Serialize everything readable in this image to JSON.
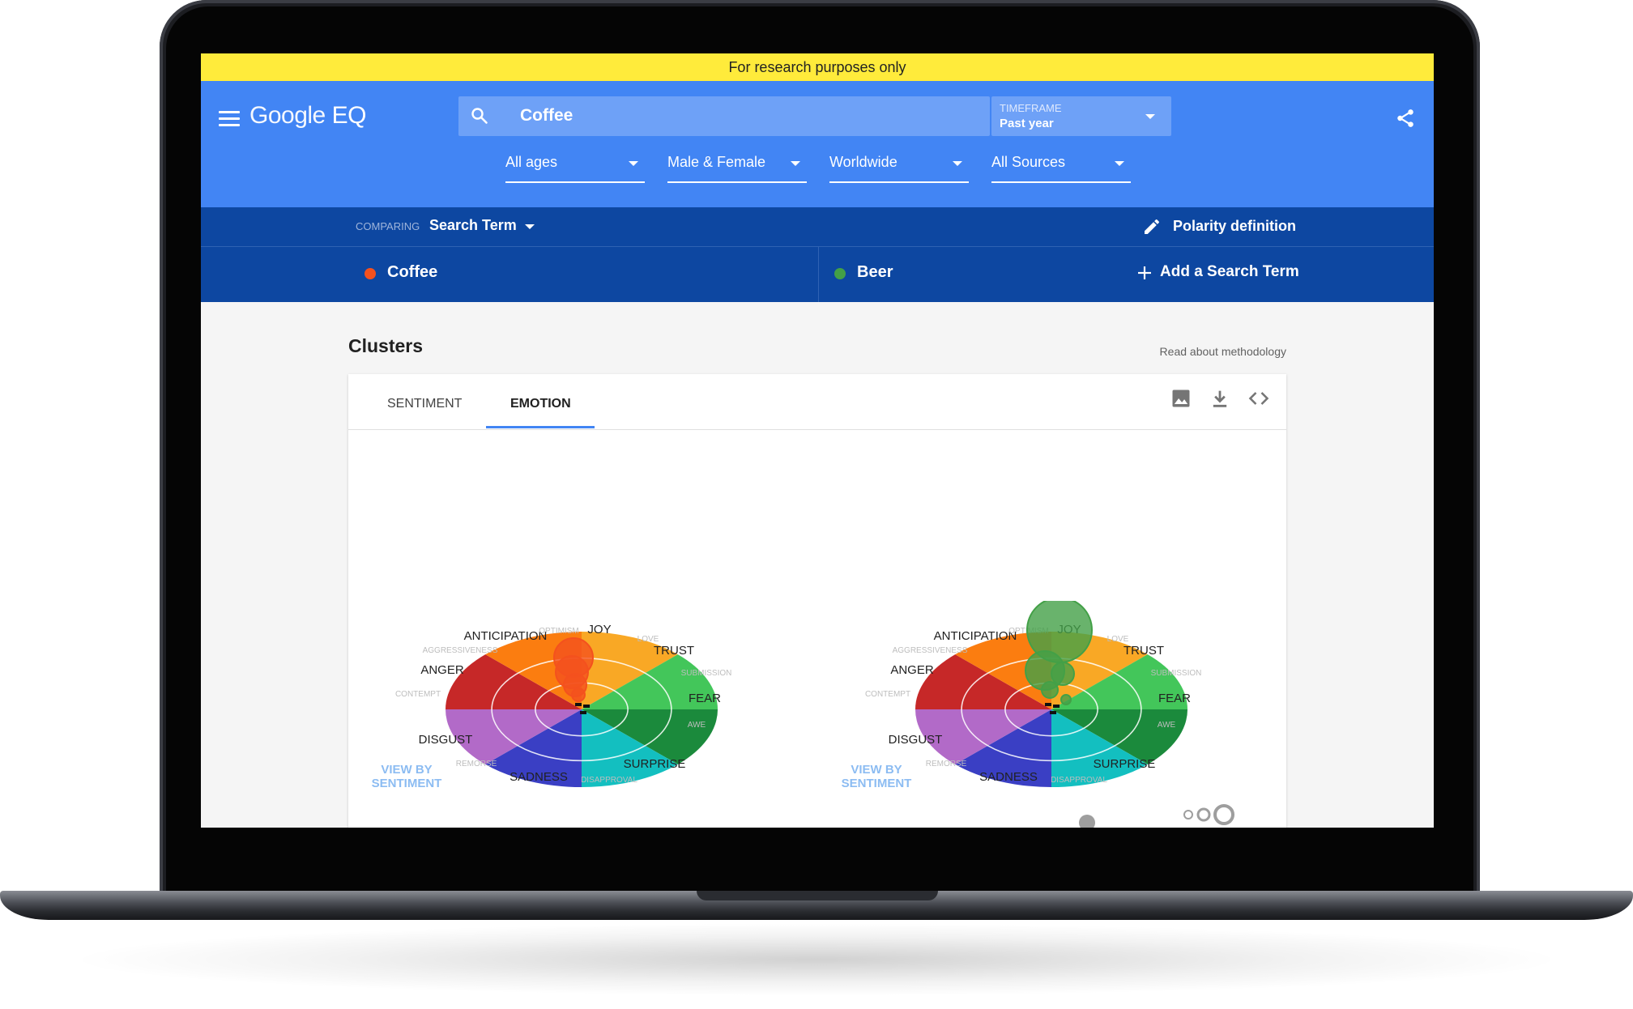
{
  "banner": {
    "text": "For research purposes only"
  },
  "app": {
    "logo_part1": "Google",
    "logo_part2": "EQ"
  },
  "search": {
    "value": "Coffee"
  },
  "timeframe": {
    "label": "TIMEFRAME",
    "value": "Past year"
  },
  "filters": [
    {
      "label": "All ages"
    },
    {
      "label": "Male & Female"
    },
    {
      "label": "Worldwide"
    },
    {
      "label": "All Sources"
    }
  ],
  "compare": {
    "label": "COMPARING",
    "value": "Search Term",
    "polarity_label": "Polarity definition"
  },
  "terms": [
    {
      "label": "Coffee",
      "color": "#f4511e"
    },
    {
      "label": "Beer",
      "color": "#43a047"
    }
  ],
  "add_term_label": "Add a Search Term",
  "section": {
    "title": "Clusters",
    "methodology_link": "Read about methodology"
  },
  "tabs": [
    {
      "label": "SENTIMENT",
      "active": false
    },
    {
      "label": "EMOTION",
      "active": true
    }
  ],
  "toolbar": {
    "icons": [
      "image-icon",
      "download-icon",
      "embed-code-icon"
    ]
  },
  "wheel": {
    "primary_labels": [
      "ANTICIPATION",
      "JOY",
      "TRUST",
      "ANGER",
      "FEAR",
      "DISGUST",
      "SURPRISE",
      "SADNESS"
    ],
    "secondary_labels": [
      "OPTIMISM",
      "LOVE",
      "AGGRESSIVENESS",
      "SUBMISSION",
      "CONTEMPT",
      "AWE",
      "REMORSE",
      "DISAPPROVAL"
    ],
    "segment_colors": {
      "joy": "#f9a825",
      "trust": "#43c65a",
      "fear": "#1b8a3c",
      "surprise": "#13bfc0",
      "sadness": "#3a3fc4",
      "disgust": "#b26ac8",
      "anger": "#c62828",
      "anticipation": "#fb7d10"
    }
  },
  "view_by_label": "VIEW BY SENTIMENT",
  "charts": [
    {
      "term": "Coffee",
      "bubble_color": "#f4511e"
    },
    {
      "term": "Beer",
      "bubble_color": "#43a047"
    }
  ]
}
